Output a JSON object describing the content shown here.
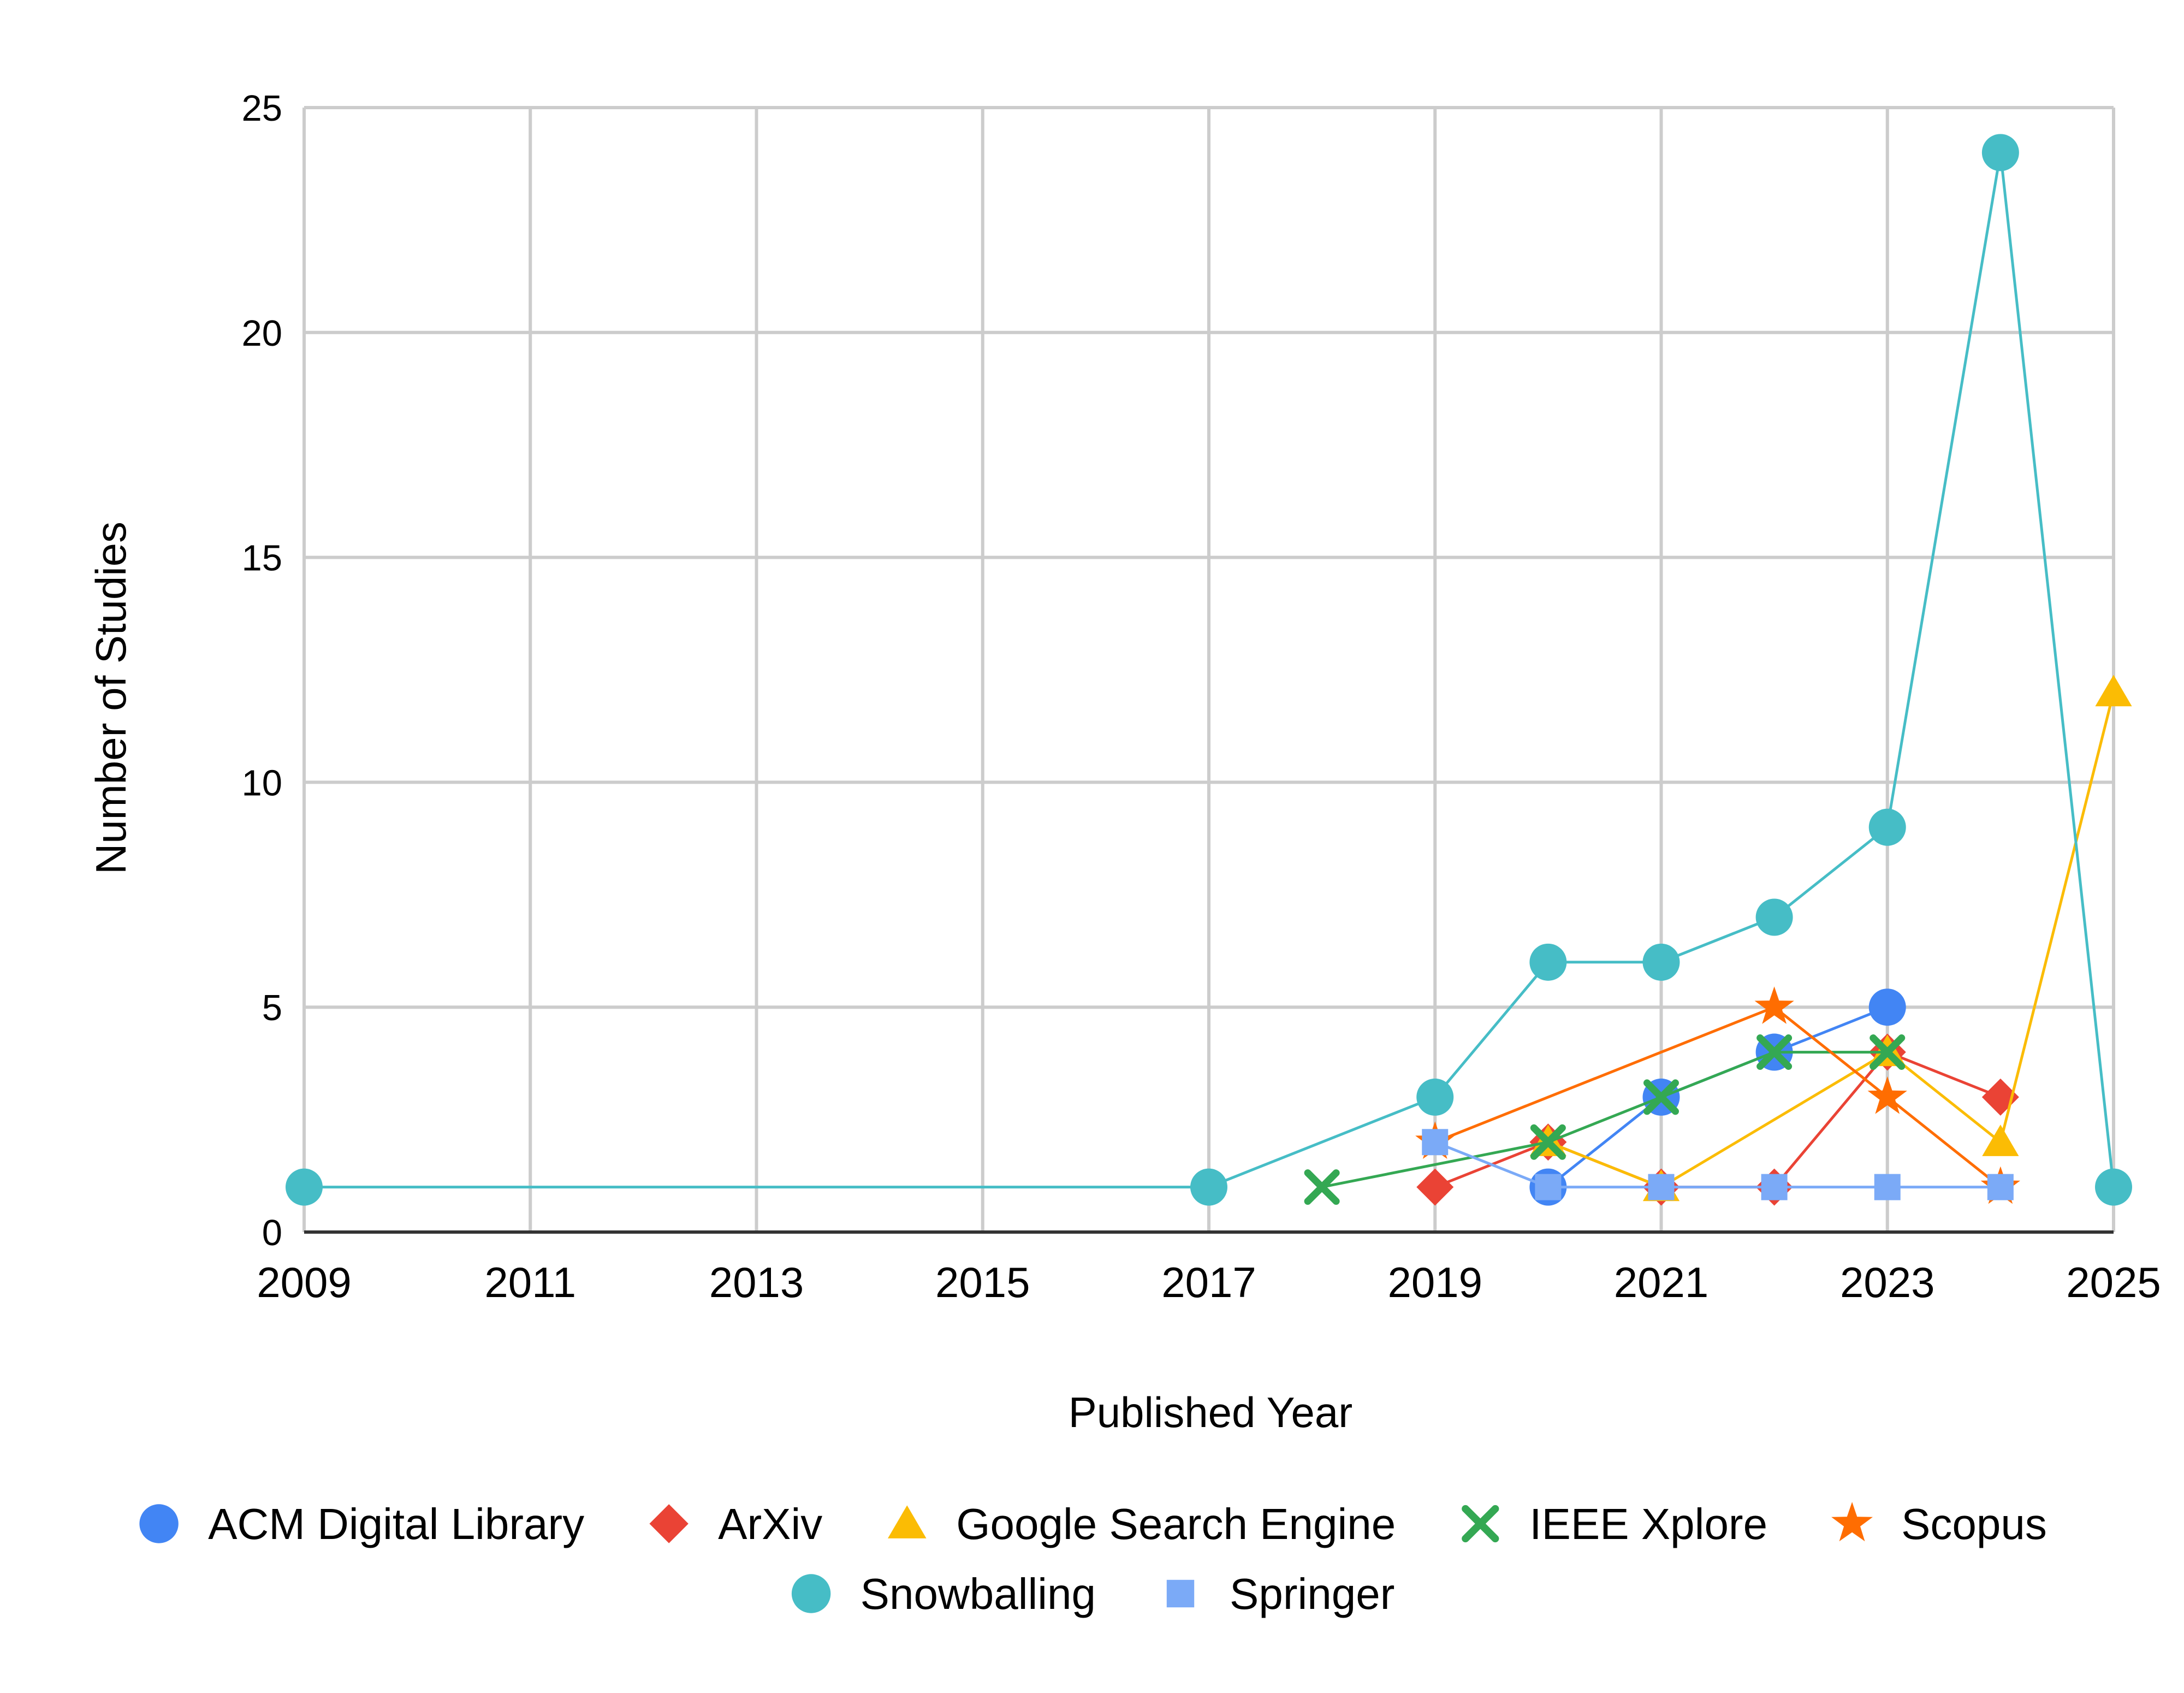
{
  "chart_data": {
    "type": "line",
    "title": "",
    "xlabel": "Published Year",
    "ylabel": "Number of Studies",
    "xlim": [
      2009,
      2025
    ],
    "ylim": [
      0,
      25
    ],
    "x_ticks": [
      2009,
      2011,
      2013,
      2015,
      2017,
      2019,
      2021,
      2023,
      2025
    ],
    "y_ticks": [
      0,
      5,
      10,
      15,
      20,
      25
    ],
    "grid": true,
    "legend_position": "bottom",
    "series": [
      {
        "name": "ACM Digital Library",
        "marker": "circle",
        "color": "#4285f4",
        "points": [
          [
            2020,
            1
          ],
          [
            2021,
            3
          ],
          [
            2022,
            4
          ],
          [
            2023,
            5
          ]
        ]
      },
      {
        "name": "ArXiv",
        "marker": "diamond",
        "color": "#ea4335",
        "points": [
          [
            2019,
            1
          ],
          [
            2020,
            2
          ],
          [
            2021,
            1
          ],
          [
            2022,
            1
          ],
          [
            2023,
            4
          ],
          [
            2024,
            3
          ]
        ]
      },
      {
        "name": "Google Search Engine",
        "marker": "triangle",
        "color": "#fbbc04",
        "points": [
          [
            2020,
            2
          ],
          [
            2021,
            1
          ],
          [
            2023,
            4
          ],
          [
            2024,
            2
          ],
          [
            2025,
            12
          ]
        ]
      },
      {
        "name": "IEEE Xplore",
        "marker": "x",
        "color": "#34a853",
        "points": [
          [
            2018,
            1
          ],
          [
            2020,
            2
          ],
          [
            2021,
            3
          ],
          [
            2022,
            4
          ],
          [
            2023,
            4
          ]
        ]
      },
      {
        "name": "Scopus",
        "marker": "star",
        "color": "#ff6d01",
        "points": [
          [
            2019,
            2
          ],
          [
            2022,
            5
          ],
          [
            2023,
            3
          ],
          [
            2024,
            1
          ]
        ]
      },
      {
        "name": "Snowballing",
        "marker": "circle",
        "color": "#46bdc6",
        "points": [
          [
            2009,
            1
          ],
          [
            2017,
            1
          ],
          [
            2019,
            3
          ],
          [
            2020,
            6
          ],
          [
            2021,
            6
          ],
          [
            2022,
            7
          ],
          [
            2023,
            9
          ],
          [
            2024,
            24
          ],
          [
            2025,
            1
          ]
        ]
      },
      {
        "name": "Springer",
        "marker": "square",
        "color": "#7baaf7",
        "points": [
          [
            2019,
            2
          ],
          [
            2020,
            1
          ],
          [
            2021,
            1
          ],
          [
            2022,
            1
          ],
          [
            2023,
            1
          ],
          [
            2024,
            1
          ]
        ]
      }
    ]
  }
}
